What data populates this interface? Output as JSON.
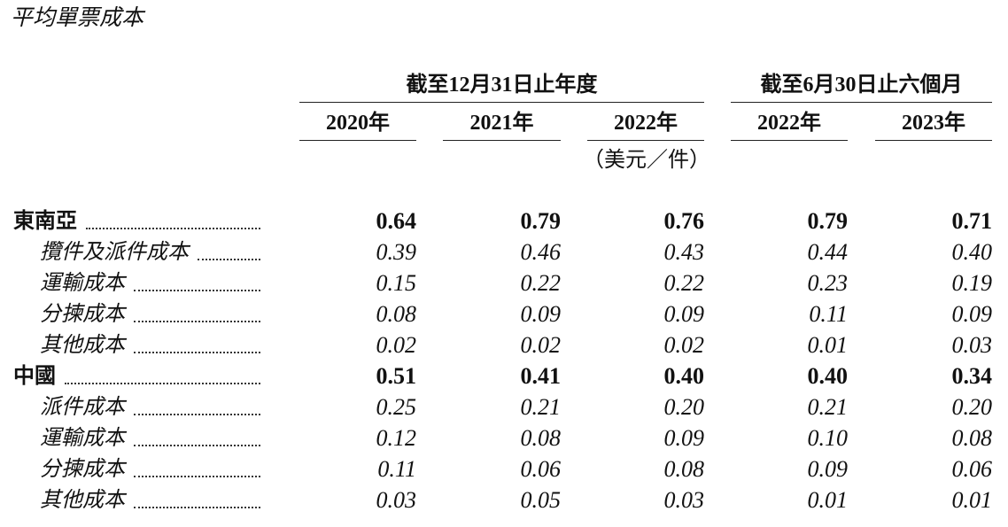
{
  "title": "平均單票成本",
  "header": {
    "groups": [
      "截至12月31日止年度",
      "截至6月30日止六個月"
    ],
    "columns": [
      "2020年",
      "2021年",
      "2022年",
      "2022年",
      "2023年"
    ],
    "unit": "（美元／件）"
  },
  "table": {
    "sections": [
      {
        "label": "東南亞",
        "values": [
          "0.64",
          "0.79",
          "0.76",
          "0.79",
          "0.71"
        ],
        "items": [
          {
            "label": "攬件及派件成本",
            "values": [
              "0.39",
              "0.46",
              "0.43",
              "0.44",
              "0.40"
            ]
          },
          {
            "label": "運輸成本",
            "values": [
              "0.15",
              "0.22",
              "0.22",
              "0.23",
              "0.19"
            ]
          },
          {
            "label": "分揀成本",
            "values": [
              "0.08",
              "0.09",
              "0.09",
              "0.11",
              "0.09"
            ]
          },
          {
            "label": "其他成本",
            "values": [
              "0.02",
              "0.02",
              "0.02",
              "0.01",
              "0.03"
            ]
          }
        ]
      },
      {
        "label": "中國",
        "values": [
          "0.51",
          "0.41",
          "0.40",
          "0.40",
          "0.34"
        ],
        "items": [
          {
            "label": "派件成本",
            "values": [
              "0.25",
              "0.21",
              "0.20",
              "0.21",
              "0.20"
            ]
          },
          {
            "label": "運輸成本",
            "values": [
              "0.12",
              "0.08",
              "0.09",
              "0.10",
              "0.08"
            ]
          },
          {
            "label": "分揀成本",
            "values": [
              "0.11",
              "0.06",
              "0.08",
              "0.09",
              "0.06"
            ]
          },
          {
            "label": "其他成本",
            "values": [
              "0.03",
              "0.05",
              "0.03",
              "0.01",
              "0.01"
            ]
          }
        ]
      }
    ]
  }
}
